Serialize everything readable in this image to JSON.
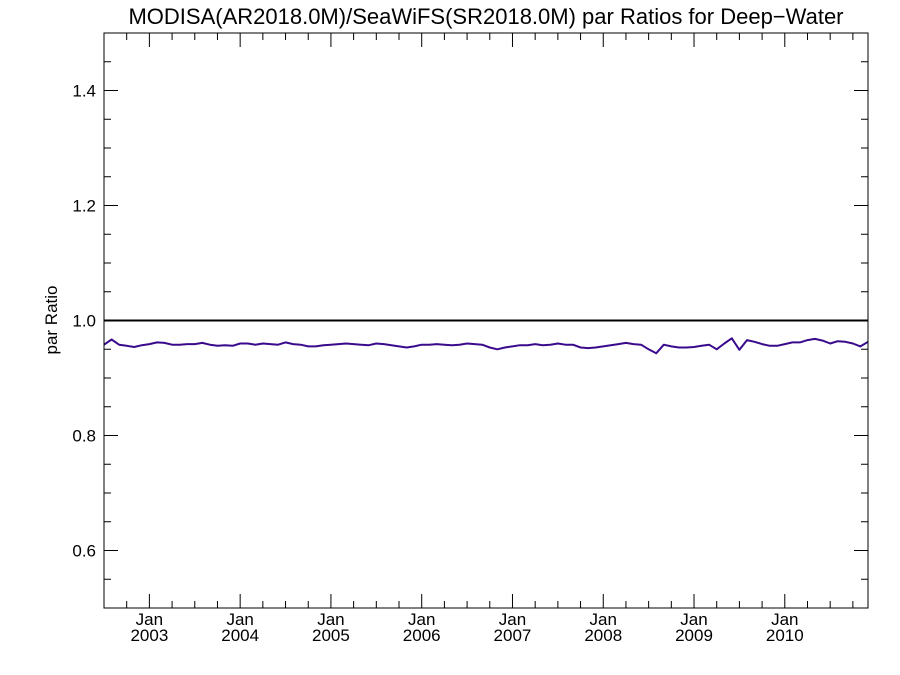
{
  "chart_data": {
    "type": "line",
    "title": "MODISA(AR2018.0M)/SeaWiFS(SR2018.0M)  par Ratios for Deep−Water",
    "xlabel": "",
    "ylabel": "par Ratio",
    "ylim": [
      0.5,
      1.5
    ],
    "y_ticks": [
      0.6,
      0.8,
      1.0,
      1.2,
      1.4
    ],
    "y_tick_labels": [
      "0.6",
      "0.8",
      "1.0",
      "1.2",
      "1.4"
    ],
    "xlim": [
      "2002-07",
      "2010-12"
    ],
    "x_ticks": [
      {
        "month": "Jan",
        "year": "2003",
        "date": "2003-01"
      },
      {
        "month": "Jan",
        "year": "2004",
        "date": "2004-01"
      },
      {
        "month": "Jan",
        "year": "2005",
        "date": "2005-01"
      },
      {
        "month": "Jan",
        "year": "2006",
        "date": "2006-01"
      },
      {
        "month": "Jan",
        "year": "2007",
        "date": "2007-01"
      },
      {
        "month": "Jan",
        "year": "2008",
        "date": "2008-01"
      },
      {
        "month": "Jan",
        "year": "2009",
        "date": "2009-01"
      },
      {
        "month": "Jan",
        "year": "2010",
        "date": "2010-01"
      }
    ],
    "reference_line": {
      "y": 1.0,
      "color": "#000000"
    },
    "series": [
      {
        "color": "#3a0a8c",
        "x": [
          "2002-07",
          "2002-08",
          "2002-09",
          "2002-10",
          "2002-11",
          "2002-12",
          "2003-01",
          "2003-02",
          "2003-03",
          "2003-04",
          "2003-05",
          "2003-06",
          "2003-07",
          "2003-08",
          "2003-09",
          "2003-10",
          "2003-11",
          "2003-12",
          "2004-01",
          "2004-02",
          "2004-03",
          "2004-04",
          "2004-05",
          "2004-06",
          "2004-07",
          "2004-08",
          "2004-09",
          "2004-10",
          "2004-11",
          "2004-12",
          "2005-01",
          "2005-02",
          "2005-03",
          "2005-04",
          "2005-05",
          "2005-06",
          "2005-07",
          "2005-08",
          "2005-09",
          "2005-10",
          "2005-11",
          "2005-12",
          "2006-01",
          "2006-02",
          "2006-03",
          "2006-04",
          "2006-05",
          "2006-06",
          "2006-07",
          "2006-08",
          "2006-09",
          "2006-10",
          "2006-11",
          "2006-12",
          "2007-01",
          "2007-02",
          "2007-03",
          "2007-04",
          "2007-05",
          "2007-06",
          "2007-07",
          "2007-08",
          "2007-09",
          "2007-10",
          "2007-11",
          "2007-12",
          "2008-01",
          "2008-02",
          "2008-03",
          "2008-04",
          "2008-05",
          "2008-06",
          "2008-07",
          "2008-08",
          "2008-09",
          "2008-10",
          "2008-11",
          "2008-12",
          "2009-01",
          "2009-02",
          "2009-03",
          "2009-04",
          "2009-05",
          "2009-06",
          "2009-07",
          "2009-08",
          "2009-09",
          "2009-10",
          "2009-11",
          "2009-12",
          "2010-01",
          "2010-02",
          "2010-03",
          "2010-04",
          "2010-05",
          "2010-06",
          "2010-07",
          "2010-08",
          "2010-09",
          "2010-10",
          "2010-11",
          "2010-12"
        ],
        "y": [
          0.958,
          0.967,
          0.958,
          0.956,
          0.954,
          0.957,
          0.959,
          0.962,
          0.961,
          0.958,
          0.958,
          0.959,
          0.959,
          0.961,
          0.958,
          0.956,
          0.957,
          0.956,
          0.96,
          0.96,
          0.958,
          0.96,
          0.959,
          0.958,
          0.962,
          0.959,
          0.958,
          0.955,
          0.955,
          0.957,
          0.958,
          0.959,
          0.96,
          0.959,
          0.958,
          0.957,
          0.96,
          0.959,
          0.957,
          0.955,
          0.953,
          0.955,
          0.958,
          0.958,
          0.959,
          0.958,
          0.957,
          0.958,
          0.96,
          0.959,
          0.958,
          0.953,
          0.95,
          0.953,
          0.955,
          0.957,
          0.957,
          0.959,
          0.957,
          0.958,
          0.96,
          0.958,
          0.958,
          0.953,
          0.952,
          0.953,
          0.955,
          0.957,
          0.959,
          0.961,
          0.959,
          0.958,
          0.95,
          0.943,
          0.958,
          0.955,
          0.953,
          0.953,
          0.954,
          0.956,
          0.958,
          0.95,
          0.96,
          0.969,
          0.949,
          0.966,
          0.963,
          0.959,
          0.956,
          0.956,
          0.959,
          0.962,
          0.962,
          0.966,
          0.968,
          0.965,
          0.96,
          0.964,
          0.963,
          0.96,
          0.955,
          0.963
        ]
      }
    ]
  }
}
